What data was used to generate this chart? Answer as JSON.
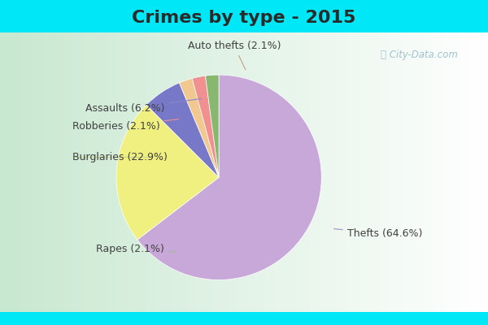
{
  "title": "Crimes by type - 2015",
  "title_fontsize": 16,
  "title_color": "#2a2a2a",
  "labels": [
    "Thefts",
    "Burglaries",
    "Assaults",
    "Auto thefts",
    "Robberies",
    "Rapes"
  ],
  "percentages": [
    64.6,
    22.9,
    6.2,
    2.1,
    2.1,
    2.1
  ],
  "colors": [
    "#c8a8d8",
    "#f0f080",
    "#7878c8",
    "#f0c890",
    "#f09090",
    "#88b870"
  ],
  "bg_cyan": "#00e8f8",
  "bg_main_left": "#c8e8d0",
  "bg_main_right": "#e8f4f0",
  "startangle": 90,
  "figsize": [
    6.0,
    4.0
  ],
  "dpi": 100,
  "label_fontsize": 9,
  "label_color": "#404040"
}
